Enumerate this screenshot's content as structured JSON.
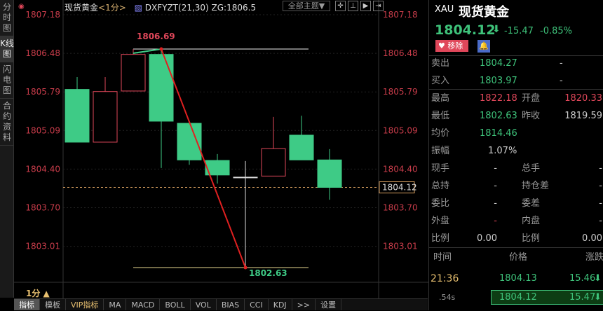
{
  "left_tabs": [
    {
      "label": "分时图",
      "active": false
    },
    {
      "label": "K线图",
      "active": true
    },
    {
      "label": "闪电图",
      "active": false
    },
    {
      "label": "合约资料",
      "active": false
    }
  ],
  "header": {
    "name": "现货黄金",
    "period": "<1分>",
    "indicator": "DXFYZT(21,30) ZG:1806.5",
    "theme": "全部主题▼"
  },
  "axis_labels": [
    "1807.18",
    "1806.48",
    "1805.79",
    "1805.09",
    "1804.40",
    "1803.70",
    "1803.01"
  ],
  "chart_data": {
    "type": "candlestick",
    "colors": {
      "up": "#e0475a",
      "down": "#3ecb86"
    },
    "candles": [
      {
        "o": 1805.94,
        "h": 1806.17,
        "l": 1804.96,
        "c": 1804.96
      },
      {
        "o": 1804.96,
        "h": 1806.17,
        "l": 1804.96,
        "c": 1805.9
      },
      {
        "o": 1805.91,
        "h": 1806.69,
        "l": 1805.91,
        "c": 1806.59
      },
      {
        "o": 1806.59,
        "h": 1806.69,
        "l": 1804.48,
        "c": 1805.35
      },
      {
        "o": 1805.31,
        "h": 1805.31,
        "l": 1804.54,
        "c": 1804.63
      },
      {
        "o": 1804.62,
        "h": 1804.74,
        "l": 1804.19,
        "c": 1804.35
      },
      {
        "o": 1804.31,
        "h": 1804.61,
        "l": 1802.63,
        "c": 1804.31
      },
      {
        "o": 1804.33,
        "h": 1805.43,
        "l": 1804.33,
        "c": 1804.84
      },
      {
        "o": 1805.09,
        "h": 1805.45,
        "l": 1804.63,
        "c": 1804.63
      },
      {
        "o": 1804.63,
        "h": 1804.83,
        "l": 1803.89,
        "c": 1804.12
      }
    ],
    "high_label": "1806.69",
    "low_label": "1802.63",
    "current_price": "1804.12",
    "ylim": [
      1802.63,
      1806.69
    ]
  },
  "quote": {
    "code": "XAU",
    "name": "现货黄金",
    "price": "1804.12",
    "change": "-15.47",
    "pct": "-0.85%",
    "remove": "移除",
    "sell_label": "卖出",
    "sell": "1804.27",
    "sell_vol": "-",
    "buy_label": "买入",
    "buy": "1803.97",
    "buy_vol": "-",
    "fields": [
      [
        "最高",
        "1822.18",
        "开盘",
        "1820.33"
      ],
      [
        "最低",
        "1802.63",
        "昨收",
        "1819.59"
      ],
      [
        "均价",
        "1814.46",
        "",
        ""
      ],
      [
        "振幅",
        "1.07%",
        "",
        ""
      ],
      [
        "现手",
        "-",
        "总手",
        "-"
      ],
      [
        "总持",
        "-",
        "持仓差",
        "-"
      ],
      [
        "委比",
        "-",
        "委差",
        "-"
      ],
      [
        "外盘",
        "-",
        "内盘",
        "-"
      ],
      [
        "比例",
        "0.00",
        "比例",
        "0.00"
      ]
    ],
    "ticks_header": [
      "时间",
      "价格",
      "涨跌"
    ],
    "ticks": [
      [
        "21:36",
        "1804.13",
        "15.46"
      ],
      [
        ".54s",
        "1804.12",
        "15.47"
      ]
    ]
  },
  "period_selector": "1分 ▲",
  "bottom_tabs": [
    "指标",
    "模板",
    "VIP指标",
    "MA",
    "MACD",
    "BOLL",
    "VOL",
    "BIAS",
    "CCI",
    "KDJ",
    ">>",
    "设置"
  ]
}
